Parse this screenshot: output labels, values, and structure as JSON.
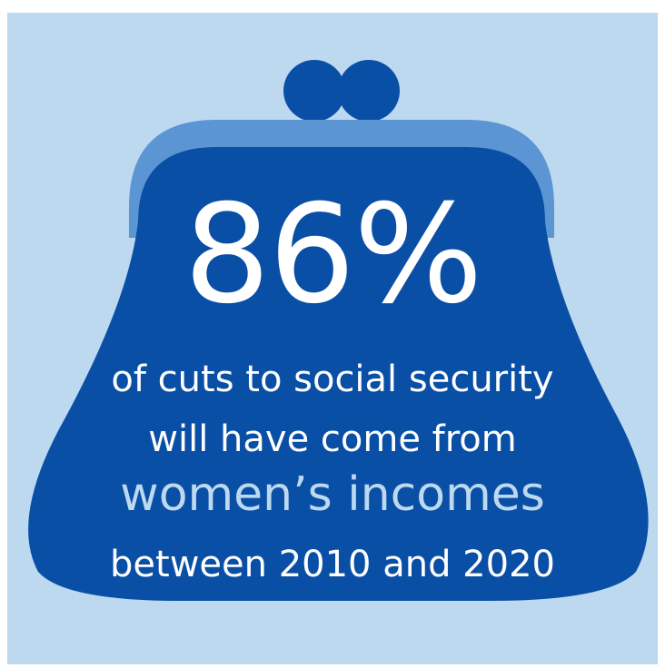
{
  "infographic": {
    "percent": "86%",
    "line1": "of cuts to social security",
    "line2": "will have come from",
    "line3": "women’s incomes",
    "line4": "between 2010 and 2020"
  },
  "colors": {
    "background_panel": "#bcd9f0",
    "purse_body": "#0a4fa6",
    "purse_rim": "#5b95d4",
    "highlight_text": "#bcd9f0",
    "text": "#ffffff"
  },
  "icons": {
    "purse": "coin-purse-icon"
  }
}
